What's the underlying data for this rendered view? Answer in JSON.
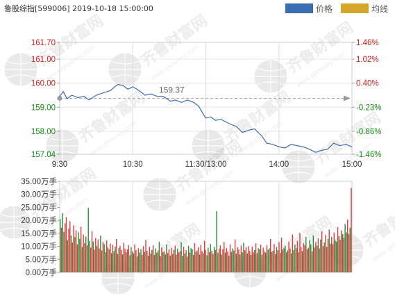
{
  "header": {
    "title": "鲁股综指[599006] 2019-10-18 15:00:00"
  },
  "legend": {
    "price_label": "价格",
    "avg_label": "均线",
    "price_color": "#3b6db3",
    "avg_color": "#d4a72c"
  },
  "watermark": {
    "cn": "齐鲁财富网",
    "en": "www.qlmoney.com"
  },
  "chart_data": [
    {
      "type": "line",
      "name": "price",
      "x_ticks": [
        "9:30",
        "10:30",
        "11:30/13:00",
        "14:00",
        "15:00"
      ],
      "y_left_ticks": [
        "161.70",
        "161.00",
        "160.00",
        "159.00",
        "158.00",
        "157.04"
      ],
      "y_right_ticks": [
        "1.46%",
        "1.02%",
        "0.40%",
        "-0.23%",
        "-0.86%",
        "-1.46%"
      ],
      "ylim": [
        157.04,
        161.7
      ],
      "prev_close": 159.37,
      "prev_close_label": "159.37",
      "x_minutes": [
        0,
        3,
        6,
        10,
        15,
        20,
        24,
        30,
        36,
        42,
        45,
        48,
        52,
        56,
        60,
        65,
        70,
        75,
        80,
        85,
        88,
        91,
        95,
        100,
        105,
        110,
        114,
        118,
        120,
        124,
        128,
        132,
        136,
        140,
        145,
        150,
        156,
        160,
        166,
        170,
        175,
        180,
        185,
        190,
        195,
        200,
        205,
        210,
        215,
        220,
        225,
        230,
        235,
        240
      ],
      "values": [
        159.45,
        159.65,
        159.35,
        159.5,
        159.4,
        159.45,
        159.3,
        159.5,
        159.6,
        159.7,
        159.85,
        159.95,
        159.9,
        159.75,
        159.85,
        159.7,
        159.5,
        159.55,
        159.45,
        159.45,
        159.35,
        159.25,
        159.3,
        159.2,
        159.3,
        159.2,
        159.05,
        158.7,
        158.55,
        158.6,
        158.45,
        158.5,
        158.4,
        158.3,
        158.2,
        157.95,
        158.05,
        158.1,
        157.8,
        157.5,
        157.45,
        157.35,
        157.3,
        157.45,
        157.4,
        157.35,
        157.25,
        157.12,
        157.2,
        157.25,
        157.5,
        157.4,
        157.45,
        157.35
      ]
    },
    {
      "type": "bar",
      "name": "volume",
      "y_ticks": [
        "35.00万手",
        "30.00万手",
        "25.00万手",
        "20.00万手",
        "15.00万手",
        "10.00万手",
        "5.00万手",
        "0.00万手"
      ],
      "ylim": [
        0,
        35
      ],
      "unit": "万手",
      "values": [
        20.5,
        17.2,
        22.8,
        15.6,
        18.9,
        21.3,
        12.4,
        16.8,
        19.7,
        14.2,
        11.5,
        18.1,
        13.6,
        16.2,
        10.8,
        15.4,
        12.9,
        17.6,
        9.8,
        14.5,
        11.2,
        13.8,
        10.4,
        24.8,
        12.1,
        9.5,
        15.8,
        11.9,
        8.7,
        13.2,
        10.1,
        12.6,
        9.2,
        14.1,
        8.4,
        11.7,
        10.9,
        7.8,
        12.3,
        9.6,
        8.9,
        11.1,
        7.4,
        10.6,
        8.2,
        9.9,
        12.8,
        7.1,
        9.4,
        10.2,
        8.6,
        6.9,
        11.4,
        9.1,
        7.7,
        8.8,
        10.5,
        6.6,
        9.7,
        8.1,
        7.3,
        10.8,
        8.5,
        6.2,
        9.3,
        7.6,
        8.9,
        6.8,
        10.1,
        7.9,
        12.5,
        8.3,
        6.4,
        9.8,
        7.2,
        8.7,
        10.4,
        6.7,
        9.2,
        7.5,
        8.4,
        11.8,
        6.3,
        9.6,
        7.8,
        8.1,
        6.9,
        10.7,
        7.4,
        8.8,
        6.5,
        9.4,
        7.1,
        8.6,
        10.3,
        6.8,
        9.1,
        7.7,
        8.2,
        11.6,
        6.4,
        9.9,
        7.3,
        8.5,
        6.1,
        10.2,
        7.6,
        9.3,
        8.9,
        6.7,
        11.3,
        7.9,
        8.4,
        9.7,
        6.9,
        10.6,
        8.2,
        7.4,
        12.2,
        8.7,
        6.6,
        9.5,
        7.8,
        10.9,
        8.3,
        7.1,
        9.8,
        8.6,
        23.5,
        7.5,
        9.1,
        10.4,
        6.8,
        8.9,
        11.7,
        7.6,
        9.4,
        8.1,
        6.5,
        10.8,
        7.9,
        9.2,
        8.4,
        12.6,
        7.2,
        9.7,
        8.8,
        6.9,
        10.3,
        7.7,
        11.4,
        8.5,
        9.6,
        7.3,
        10.1,
        8.2,
        6.7,
        9.9,
        7.8,
        8.6,
        11.2,
        7.4,
        9.3,
        8.9,
        10.7,
        6.8,
        9.5,
        8.1,
        7.6,
        10.5,
        8.7,
        9.2,
        12.8,
        7.9,
        8.3,
        10.9,
        7.1,
        9.8,
        8.5,
        11.6,
        7.5,
        13.4,
        8.8,
        9.4,
        10.2,
        7.7,
        8.4,
        11.9,
        9.1,
        7.3,
        14.6,
        8.6,
        10.6,
        9.3,
        12.1,
        7.8,
        15.2,
        9.7,
        8.2,
        11.3,
        10.4,
        13.7,
        8.9,
        9.5,
        12.4,
        10.8,
        8.1,
        14.2,
        9.6,
        11.7,
        10.3,
        13.1,
        9.2,
        12.6,
        15.8,
        10.1,
        11.5,
        14.4,
        9.8,
        12.9,
        16.5,
        11.1,
        13.6,
        10.7,
        15.3,
        12.2,
        11.8,
        17.4,
        13.9,
        12.5,
        16.1,
        14.7,
        13.3,
        18.6,
        15.4,
        20.3,
        14.8,
        17.2,
        32.5
      ]
    }
  ]
}
